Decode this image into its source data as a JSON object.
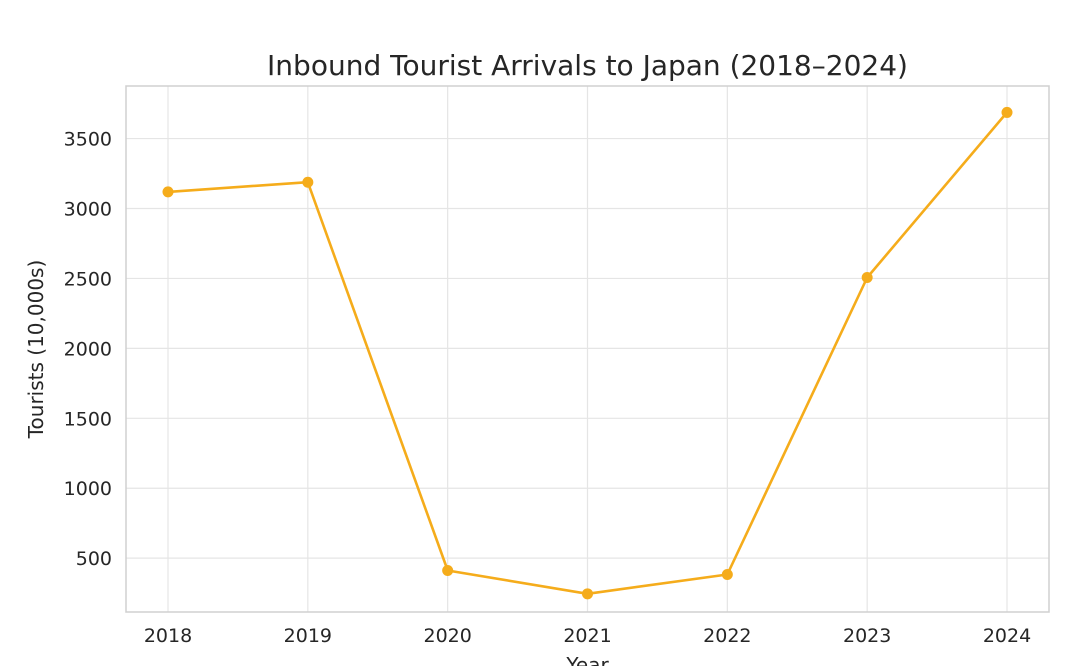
{
  "chart_data": {
    "type": "line",
    "title": "Inbound Tourist Arrivals to Japan (2018–2024)",
    "xlabel": "Year",
    "ylabel": "Tourists (10,000s)",
    "x": [
      "2018",
      "2019",
      "2020",
      "2021",
      "2022",
      "2023",
      "2024"
    ],
    "series": [
      {
        "values": [
          3119,
          3188,
          412,
          245,
          383,
          2507,
          3687
        ],
        "color": "#f5ac1b"
      }
    ],
    "yticks": [
      500,
      1000,
      1500,
      2000,
      2500,
      3000,
      3500
    ],
    "ylim": [
      115,
      3876
    ],
    "grid": true,
    "marker": "circle"
  }
}
